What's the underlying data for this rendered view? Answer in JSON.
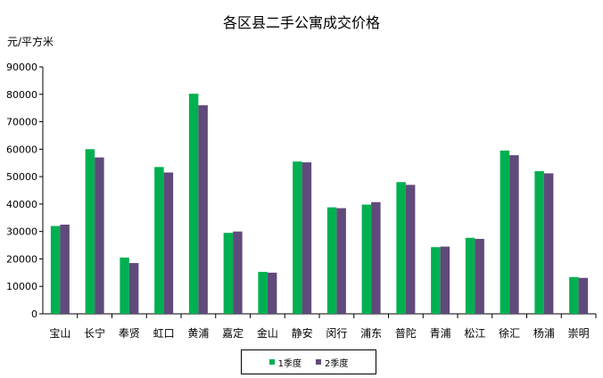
{
  "chart_data": {
    "type": "bar",
    "title": "各区县二手公寓成交价格",
    "ylabel": "元/平方米",
    "xlabel": "",
    "ylim": [
      0,
      90000
    ],
    "yticks": [
      0,
      10000,
      20000,
      30000,
      40000,
      50000,
      60000,
      70000,
      80000,
      90000
    ],
    "grid": false,
    "legend_position": "bottom",
    "categories": [
      "宝山",
      "长宁",
      "奉贤",
      "虹口",
      "黄浦",
      "嘉定",
      "金山",
      "静安",
      "闵行",
      "浦东",
      "普陀",
      "青浦",
      "松江",
      "徐汇",
      "杨浦",
      "崇明"
    ],
    "series": [
      {
        "name": "1季度",
        "color": "#00b050",
        "values": [
          32000,
          60000,
          20500,
          53500,
          80200,
          29500,
          15300,
          55500,
          38800,
          39800,
          48000,
          24300,
          27700,
          59500,
          52000,
          13400
        ]
      },
      {
        "name": "2季度",
        "color": "#604a7b",
        "values": [
          32500,
          57000,
          18500,
          51500,
          76000,
          30000,
          15000,
          55200,
          38500,
          40700,
          47000,
          24500,
          27300,
          57800,
          51200,
          13100
        ]
      }
    ]
  }
}
